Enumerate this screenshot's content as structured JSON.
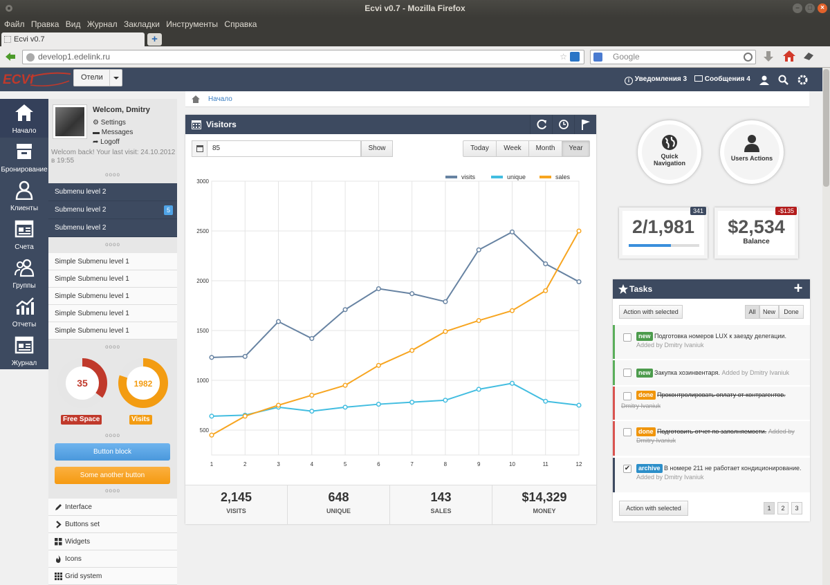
{
  "browser": {
    "window_title": "Ecvi v0.7 - Mozilla Firefox",
    "menu": [
      "Файл",
      "Правка",
      "Вид",
      "Журнал",
      "Закладки",
      "Инструменты",
      "Справка"
    ],
    "tab_title": "Ecvi v0.7",
    "url": "develop1.edelink.ru",
    "search_placeholder": "Google"
  },
  "header": {
    "logo_text": "ECVI",
    "hotel_dropdown": "Отели",
    "notifications": "Уведомления 3",
    "messages": "Сообщения 4"
  },
  "icon_nav": [
    {
      "label": "Начало",
      "icon": "home-icon"
    },
    {
      "label": "Бронирование",
      "icon": "archive-box-icon"
    },
    {
      "label": "Клиенты",
      "icon": "user-icon"
    },
    {
      "label": "Счета",
      "icon": "invoice-icon"
    },
    {
      "label": "Группы",
      "icon": "users-icon"
    },
    {
      "label": "Отчеты",
      "icon": "bar-chart-icon"
    },
    {
      "label": "Журнал",
      "icon": "journal-icon"
    }
  ],
  "profile": {
    "welcome": "Welcom, Dmitry",
    "links": [
      "Settings",
      "Messages",
      "Logoff"
    ],
    "last_visit": "Welcom back! Your last visit: 24.10.2012 в 19:55"
  },
  "submenu": [
    {
      "label": "Submenu level 2",
      "badge": ""
    },
    {
      "label": "Submenu level 2",
      "badge": "5"
    },
    {
      "label": "Submenu level 2",
      "badge": ""
    }
  ],
  "simple_submenu": [
    "Simple Submenu level 1",
    "Simple Submenu level 1",
    "Simple Submenu level 1",
    "Simple Submenu level 1",
    "Simple Submenu level 1"
  ],
  "gauges": [
    {
      "value": "35",
      "label": "Free Space",
      "color": "#c0392b",
      "fraction": 0.35
    },
    {
      "value": "1982",
      "label": "Visits",
      "color": "#f39c12",
      "fraction": 0.8
    }
  ],
  "buttons": {
    "block": "Button block",
    "another": "Some another button"
  },
  "bottom_menu": [
    {
      "label": "Interface",
      "icon": "pencil-icon"
    },
    {
      "label": "Buttons set",
      "icon": "chevron-right-icon"
    },
    {
      "label": "Widgets",
      "icon": "grid-icon"
    },
    {
      "label": "Icons",
      "icon": "fire-icon"
    },
    {
      "label": "Grid system",
      "icon": "grid-system-icon"
    }
  ],
  "breadcrumb": "Начало",
  "visitors": {
    "title": "Visitors",
    "input_value": "85",
    "show_button": "Show",
    "periods": [
      "Today",
      "Week",
      "Month",
      "Year"
    ],
    "active_period": "Year"
  },
  "chart_data": {
    "type": "line",
    "x": [
      1,
      2,
      3,
      4,
      5,
      6,
      7,
      8,
      9,
      10,
      11,
      12
    ],
    "series": [
      {
        "name": "visits",
        "color": "#6783a2",
        "values": [
          1230,
          1240,
          1590,
          1420,
          1710,
          1920,
          1870,
          1790,
          2310,
          2490,
          2170,
          1990
        ]
      },
      {
        "name": "unique",
        "color": "#42bde0",
        "values": [
          640,
          650,
          730,
          690,
          730,
          760,
          780,
          800,
          910,
          970,
          790,
          750
        ]
      },
      {
        "name": "sales",
        "color": "#f7a520",
        "values": [
          450,
          640,
          750,
          850,
          950,
          1150,
          1300,
          1490,
          1600,
          1700,
          1900,
          2500
        ]
      }
    ],
    "yticks": [
      500,
      1000,
      1500,
      2000,
      2500,
      3000
    ],
    "ylim": [
      250,
      3000
    ],
    "grid": true,
    "legend": "top-right"
  },
  "stats": [
    {
      "value": "2,145",
      "label": "VISITS"
    },
    {
      "value": "648",
      "label": "UNIQUE"
    },
    {
      "value": "143",
      "label": "SALES"
    },
    {
      "value": "$14,329",
      "label": "MONEY"
    }
  ],
  "quick": [
    {
      "label1": "Quick",
      "label2": "Navigation",
      "icon": "globe-icon"
    },
    {
      "label1": "Users Actions",
      "label2": "",
      "icon": "user-icon"
    }
  ],
  "statboxes": [
    {
      "value": "2/1,981",
      "badge": "341",
      "label": "",
      "progress": 0.6
    },
    {
      "value": "$2,534",
      "badge": "-$135",
      "label": "Balance"
    }
  ],
  "tasks": {
    "title": "Tasks",
    "action_button": "Action with selected",
    "filters": [
      "All",
      "New",
      "Done"
    ],
    "items": [
      {
        "tag": "new",
        "text": "Подготовка номеров LUX к заезду делегации.",
        "by": "Added by Dmitry Ivaniuk",
        "checked": false
      },
      {
        "tag": "new",
        "text": "Закупка хозинвентаря.",
        "by": "Added by Dmitry Ivaniuk",
        "checked": false
      },
      {
        "tag": "done",
        "text": "Проконтролировать оплату от контрагентов.",
        "by": "Dmitry Ivaniuk",
        "checked": false
      },
      {
        "tag": "done",
        "text": "Подготовить отчет по заполняемости.",
        "by": "Added by Dmitry Ivaniuk",
        "checked": false
      },
      {
        "tag": "archive",
        "text": "В номере 211 не работает кондиционирование.",
        "by": "Added by Dmitry Ivaniuk",
        "checked": true
      }
    ],
    "bottom_button": "Action with selected",
    "pages": [
      "1",
      "2",
      "3"
    ]
  }
}
